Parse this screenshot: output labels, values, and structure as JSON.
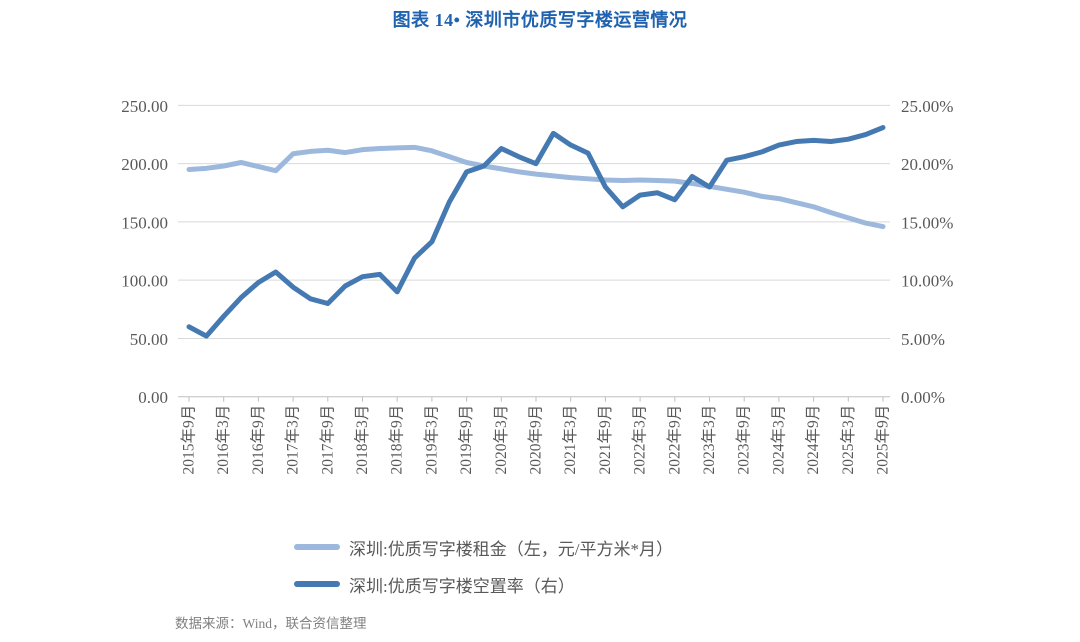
{
  "page": {
    "title": "图表 14• 深圳市优质写字楼运营情况",
    "title_color": "#1F63B0",
    "source": "数据来源：Wind，联合资信整理"
  },
  "legend": {
    "items": [
      {
        "label": "深圳:优质写字楼租金（左，元/平方米*月）",
        "color": "#9CB8DC"
      },
      {
        "label": "深圳:优质写字楼空置率（右）",
        "color": "#4579B2"
      }
    ]
  },
  "chart_data": {
    "type": "line",
    "title": "图表 14• 深圳市优质写字楼运营情况",
    "grid": "horizontal",
    "legend_position": "bottom-left",
    "x_tick_labels": [
      "2015年9月",
      "2016年3月",
      "2016年9月",
      "2017年3月",
      "2017年9月",
      "2018年3月",
      "2018年9月",
      "2019年3月",
      "2019年9月",
      "2020年3月",
      "2020年9月",
      "2021年3月",
      "2021年9月",
      "2022年3月",
      "2022年9月",
      "2023年3月",
      "2023年9月",
      "2024年3月",
      "2024年9月",
      "2025年3月",
      "2025年9月"
    ],
    "x": [
      "2015Q3",
      "2015Q4",
      "2016Q1",
      "2016Q2",
      "2016Q3",
      "2016Q4",
      "2017Q1",
      "2017Q2",
      "2017Q3",
      "2017Q4",
      "2018Q1",
      "2018Q2",
      "2018Q3",
      "2018Q4",
      "2019Q1",
      "2019Q2",
      "2019Q3",
      "2019Q4",
      "2020Q1",
      "2020Q2",
      "2020Q3",
      "2020Q4",
      "2021Q1",
      "2021Q2",
      "2021Q3",
      "2021Q4",
      "2022Q1",
      "2022Q2",
      "2022Q3",
      "2022Q4",
      "2023Q1",
      "2023Q2",
      "2023Q3",
      "2023Q4",
      "2024Q1",
      "2024Q2",
      "2024Q3",
      "2024Q4",
      "2025Q1",
      "2025Q2",
      "2025Q3"
    ],
    "left_axis": {
      "min": 0,
      "max": 250,
      "tick_labels": [
        "0.00",
        "50.00",
        "100.00",
        "150.00",
        "200.00",
        "250.00"
      ],
      "label_color": "#595959"
    },
    "right_axis": {
      "min": 0,
      "max": 25,
      "tick_labels": [
        "0.00%",
        "5.00%",
        "10.00%",
        "15.00%",
        "20.00%",
        "25.00%"
      ],
      "label_color": "#595959"
    },
    "gridline_color": "#D9D9D9",
    "baseline_color": "#BFBFBF",
    "series": [
      {
        "name": "深圳:优质写字楼租金（左，元/平方米*月）",
        "axis": "left",
        "color": "#9CB8DC",
        "values": [
          195,
          196,
          198,
          201,
          197.5,
          194,
          208.5,
          210.5,
          211.5,
          209.5,
          212,
          213,
          213.5,
          214,
          211,
          206,
          201,
          198,
          195.5,
          193,
          191,
          189.5,
          188,
          187,
          186,
          185.5,
          186,
          185.5,
          185,
          183,
          180.5,
          178,
          175.5,
          172,
          170,
          166.5,
          163,
          158,
          153.5,
          149,
          146
        ]
      },
      {
        "name": "深圳:优质写字楼空置率（右）",
        "axis": "right",
        "color": "#4579B2",
        "values": [
          6.0,
          5.2,
          6.9,
          8.5,
          9.8,
          10.7,
          9.4,
          8.4,
          8.0,
          9.5,
          10.3,
          10.5,
          9.0,
          11.9,
          13.3,
          16.7,
          19.3,
          19.8,
          21.3,
          20.6,
          20.0,
          22.6,
          21.6,
          20.9,
          18.0,
          16.3,
          17.3,
          17.5,
          16.9,
          18.9,
          18.0,
          20.3,
          20.6,
          21.0,
          21.6,
          21.9,
          22.0,
          21.9,
          22.1,
          22.5,
          23.1
        ]
      }
    ]
  }
}
